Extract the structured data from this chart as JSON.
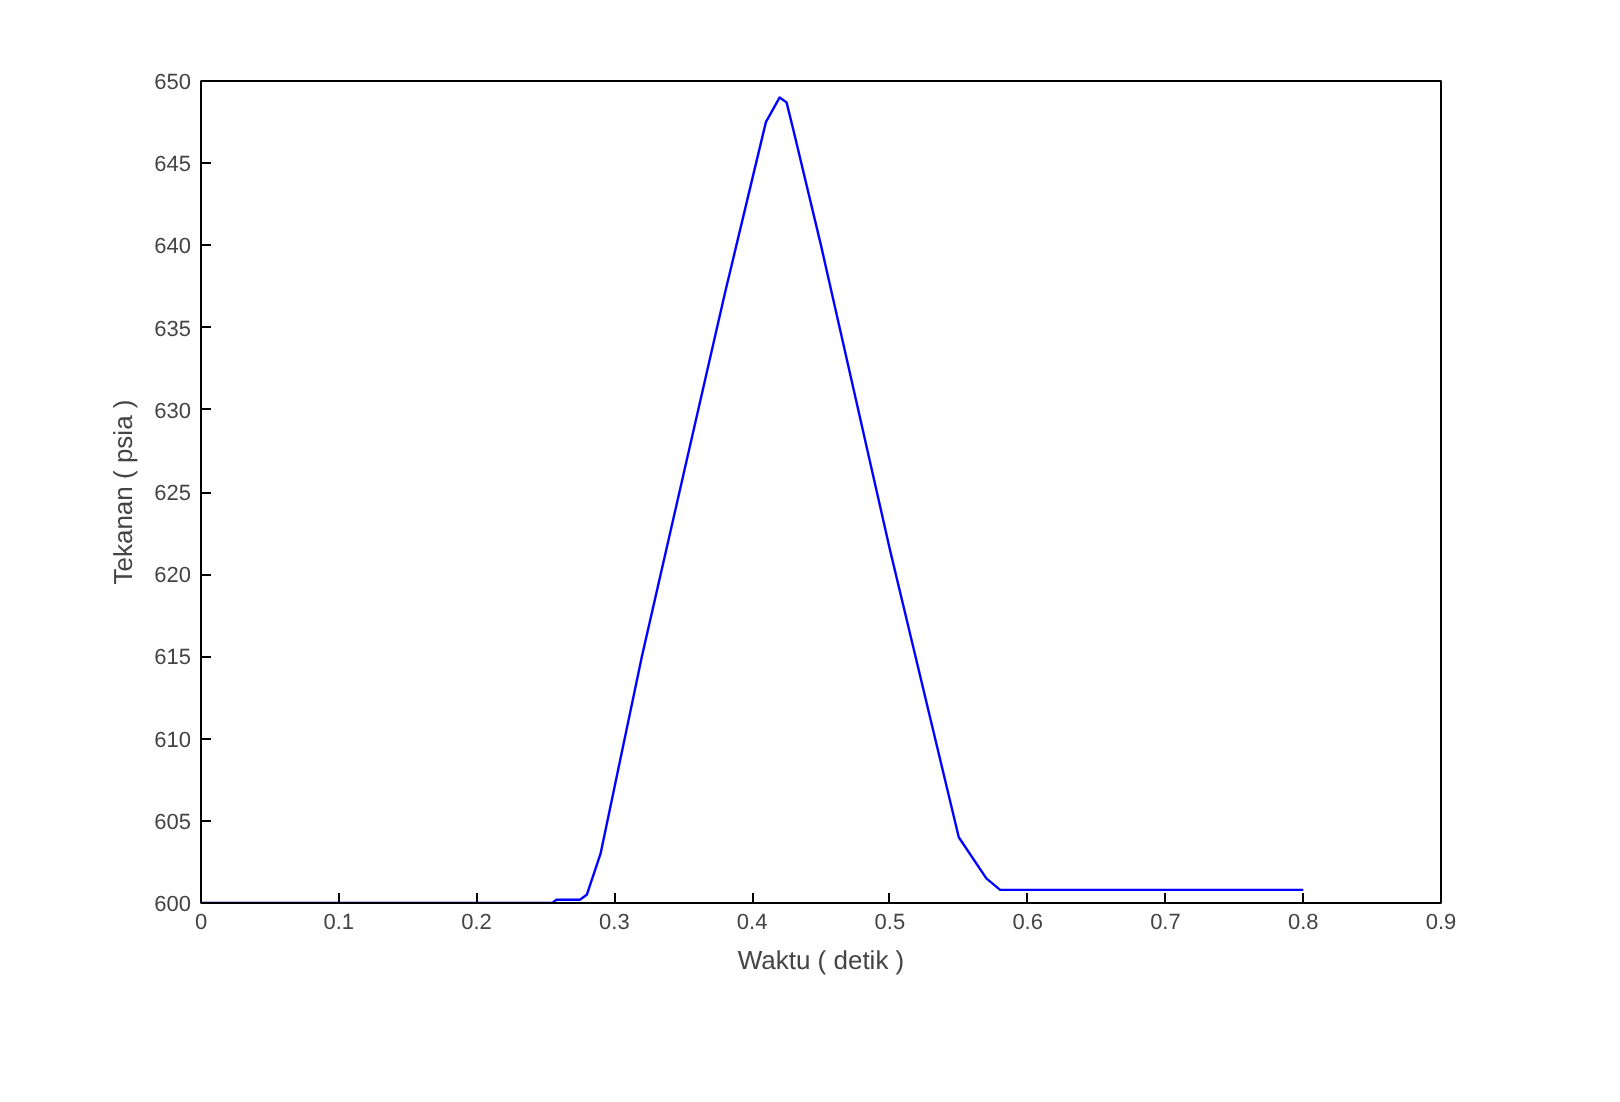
{
  "chart_data": {
    "type": "line",
    "xlabel": "Waktu ( detik )",
    "ylabel": "Tekanan ( psia )",
    "x": [
      0,
      0.255,
      0.258,
      0.275,
      0.28,
      0.29,
      0.3,
      0.32,
      0.35,
      0.38,
      0.4,
      0.41,
      0.42,
      0.425,
      0.43,
      0.45,
      0.5,
      0.55,
      0.57,
      0.58,
      0.6,
      0.8
    ],
    "series": [
      {
        "color": "#0000ff",
        "values": [
          600,
          600,
          600.2,
          600.2,
          600.5,
          603,
          607,
          615,
          626,
          637,
          644,
          647.5,
          649,
          648.7,
          647,
          640,
          621.5,
          604,
          601.5,
          600.8,
          600.8,
          600.8
        ]
      }
    ],
    "xlim": [
      0,
      0.9
    ],
    "xticks": [
      0,
      0.1,
      0.2,
      0.3,
      0.4,
      0.5,
      0.6,
      0.7,
      0.8,
      0.9
    ],
    "ylim": [
      600,
      650
    ],
    "yticks": [
      600,
      605,
      610,
      615,
      620,
      625,
      630,
      635,
      640,
      645,
      650
    ],
    "grid": false,
    "marker": "none",
    "line_style": "solid"
  }
}
